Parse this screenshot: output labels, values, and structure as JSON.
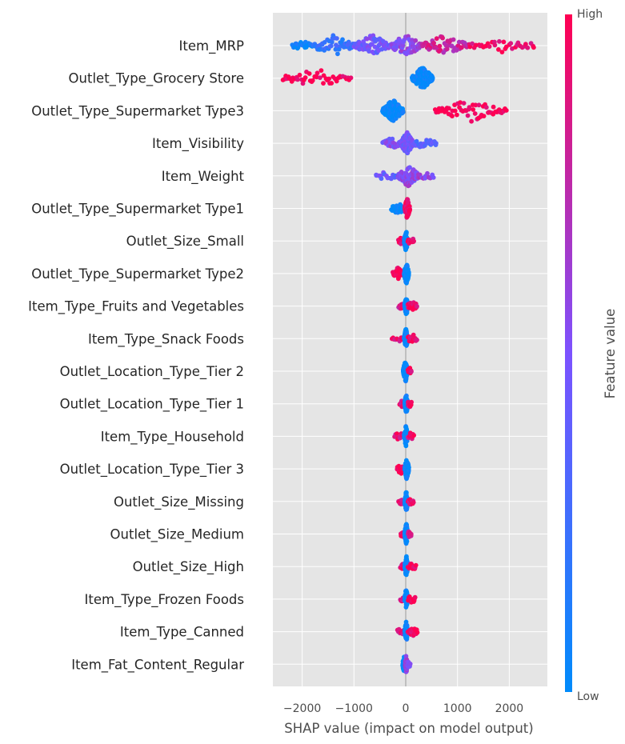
{
  "chart_data": {
    "type": "scatter",
    "subtype": "shap-beeswarm",
    "xlabel": "SHAP value (impact on model output)",
    "xlim": [
      -2600,
      2700
    ],
    "xticks": [
      -2000,
      -1000,
      0,
      1000,
      2000
    ],
    "xtick_labels": [
      "−2000",
      "−1000",
      "0",
      "1000",
      "2000"
    ],
    "grid": true,
    "colorbar": {
      "label": "Feature value",
      "high_label": "High",
      "low_label": "Low",
      "low_color": "#008bfb",
      "mid_color": "#7c52ff",
      "high_color": "#ff0052"
    },
    "features": [
      {
        "name": "Item_MRP",
        "groups": [
          [
            -2200,
            -1800,
            0.05,
            25
          ],
          [
            -1800,
            -1000,
            0.2,
            55
          ],
          [
            -1000,
            -300,
            0.45,
            70
          ],
          [
            -300,
            300,
            0.55,
            60
          ],
          [
            300,
            1200,
            0.8,
            55
          ],
          [
            1200,
            2500,
            0.95,
            35
          ]
        ]
      },
      {
        "name": "Outlet_Type_Grocery Store",
        "groups": [
          [
            -2400,
            -1050,
            1.0,
            45
          ],
          [
            120,
            520,
            0.0,
            140
          ]
        ]
      },
      {
        "name": "Outlet_Type_Supermarket Type3",
        "groups": [
          [
            -450,
            -50,
            0.0,
            120
          ],
          [
            550,
            1950,
            1.0,
            60
          ]
        ]
      },
      {
        "name": "Item_Visibility",
        "groups": [
          [
            -450,
            -100,
            0.5,
            25
          ],
          [
            -100,
            150,
            0.45,
            90
          ],
          [
            150,
            600,
            0.35,
            25
          ]
        ]
      },
      {
        "name": "Item_Weight",
        "groups": [
          [
            -600,
            -150,
            0.4,
            15
          ],
          [
            -150,
            250,
            0.55,
            80
          ],
          [
            250,
            550,
            0.6,
            12
          ]
        ]
      },
      {
        "name": "Outlet_Type_Supermarket Type1",
        "groups": [
          [
            -280,
            -20,
            0.0,
            25
          ],
          [
            -20,
            80,
            0.95,
            70
          ]
        ]
      },
      {
        "name": "Outlet_Size_Small",
        "groups": [
          [
            -150,
            -20,
            0.95,
            12
          ],
          [
            -30,
            40,
            0.0,
            70
          ],
          [
            40,
            160,
            0.9,
            15
          ]
        ]
      },
      {
        "name": "Outlet_Type_Supermarket Type2",
        "groups": [
          [
            -250,
            -40,
            1.0,
            30
          ],
          [
            -30,
            60,
            0.0,
            80
          ]
        ]
      },
      {
        "name": "Item_Type_Fruits and Vegetables",
        "groups": [
          [
            -140,
            -20,
            0.85,
            10
          ],
          [
            -20,
            40,
            0.0,
            80
          ],
          [
            40,
            220,
            0.95,
            18
          ]
        ]
      },
      {
        "name": "Item_Type_Snack Foods",
        "groups": [
          [
            -280,
            -30,
            0.9,
            12
          ],
          [
            -30,
            40,
            0.0,
            80
          ],
          [
            40,
            220,
            0.95,
            18
          ]
        ]
      },
      {
        "name": "Outlet_Location_Type_Tier 2",
        "groups": [
          [
            -50,
            40,
            0.0,
            80
          ],
          [
            40,
            110,
            0.95,
            12
          ]
        ]
      },
      {
        "name": "Outlet_Location_Type_Tier 1",
        "groups": [
          [
            -120,
            -20,
            0.9,
            12
          ],
          [
            -20,
            40,
            0.0,
            80
          ],
          [
            40,
            110,
            0.9,
            12
          ]
        ]
      },
      {
        "name": "Item_Type_Household",
        "groups": [
          [
            -220,
            -30,
            0.9,
            15
          ],
          [
            -30,
            40,
            0.0,
            80
          ],
          [
            40,
            160,
            0.9,
            14
          ]
        ]
      },
      {
        "name": "Outlet_Location_Type_Tier 3",
        "groups": [
          [
            -170,
            -20,
            1.0,
            25
          ],
          [
            -20,
            60,
            0.0,
            80
          ]
        ]
      },
      {
        "name": "Outlet_Size_Missing",
        "groups": [
          [
            -140,
            -20,
            0.9,
            10
          ],
          [
            -20,
            40,
            0.0,
            80
          ],
          [
            40,
            160,
            0.9,
            12
          ]
        ]
      },
      {
        "name": "Outlet_Size_Medium",
        "groups": [
          [
            -100,
            -20,
            0.9,
            10
          ],
          [
            -20,
            40,
            0.0,
            80
          ],
          [
            40,
            110,
            0.9,
            12
          ]
        ]
      },
      {
        "name": "Outlet_Size_High",
        "groups": [
          [
            -110,
            -20,
            0.9,
            8
          ],
          [
            -20,
            40,
            0.0,
            80
          ],
          [
            40,
            200,
            0.95,
            14
          ]
        ]
      },
      {
        "name": "Item_Type_Frozen Foods",
        "groups": [
          [
            -110,
            -20,
            0.9,
            8
          ],
          [
            -20,
            40,
            0.0,
            80
          ],
          [
            40,
            190,
            0.95,
            14
          ]
        ]
      },
      {
        "name": "Item_Type_Canned",
        "groups": [
          [
            -170,
            -20,
            0.9,
            12
          ],
          [
            -20,
            40,
            0.0,
            80
          ],
          [
            40,
            230,
            0.95,
            18
          ]
        ]
      },
      {
        "name": "Item_Fat_Content_Regular",
        "groups": [
          [
            -60,
            -10,
            0.0,
            40
          ],
          [
            -10,
            30,
            0.6,
            50
          ],
          [
            30,
            90,
            0.5,
            12
          ]
        ]
      }
    ]
  }
}
